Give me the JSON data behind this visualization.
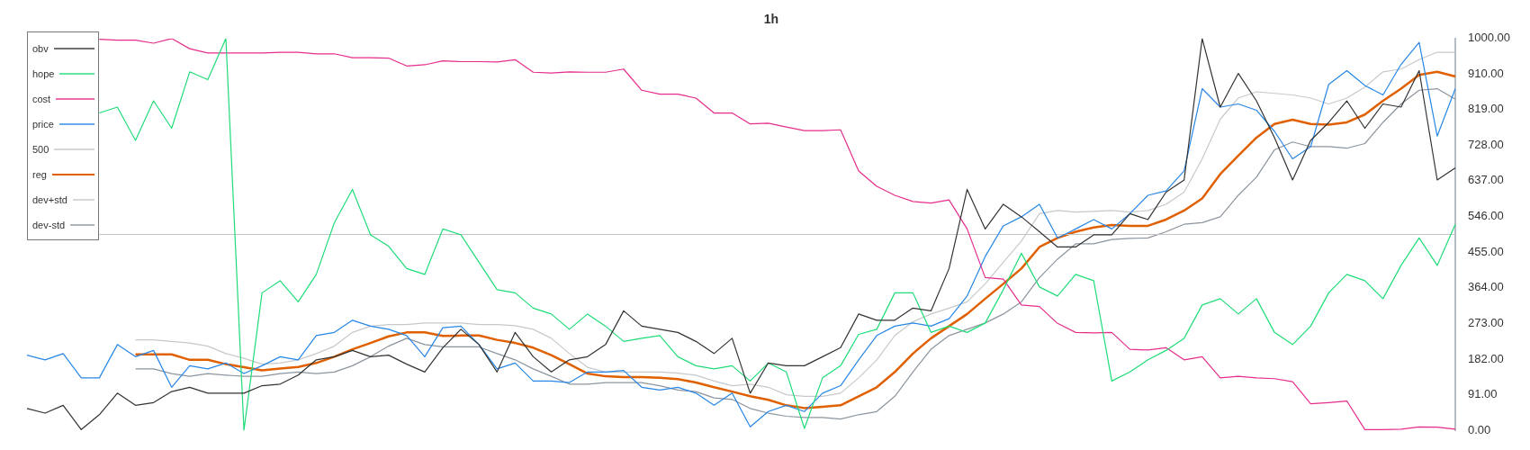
{
  "chart_data": {
    "type": "line",
    "title": "1h",
    "categories": [
      null,
      null,
      null,
      null,
      null,
      null,
      null,
      null,
      null,
      null,
      null,
      null,
      null,
      null,
      null,
      null,
      null,
      null,
      null,
      null,
      null,
      null,
      null,
      null,
      null,
      null,
      null,
      null,
      null,
      null,
      null,
      null,
      null,
      null,
      null,
      null,
      null,
      null,
      null,
      null,
      null,
      null,
      null,
      null,
      null,
      null,
      null,
      null,
      null,
      null,
      null,
      null,
      null,
      null,
      null,
      null,
      null,
      null,
      null,
      null,
      null,
      null,
      null,
      null,
      null,
      null,
      null,
      null,
      null,
      null,
      null,
      null,
      null,
      null,
      null,
      null,
      null,
      null,
      null,
      null
    ],
    "series": [
      {
        "name": "obv",
        "color": "#333333",
        "values": [
          56,
          44,
          64,
          2,
          40,
          95,
          64,
          71,
          99,
          110,
          95,
          95,
          95,
          114,
          118,
          141,
          180,
          188,
          204,
          188,
          192,
          169,
          149,
          211,
          258,
          219,
          149,
          250,
          188,
          149,
          180,
          188,
          219,
          305,
          266,
          258,
          250,
          227,
          196,
          235,
          95,
          172,
          165,
          165,
          188,
          211,
          297,
          281,
          281,
          312,
          305,
          413,
          615,
          514,
          577,
          545,
          507,
          468,
          468,
          499,
          499,
          553,
          538,
          608,
          639,
          1000,
          825,
          911,
          841,
          747,
          639,
          740,
          786,
          841,
          771,
          833,
          825,
          918,
          639,
          670
        ]
      },
      {
        "name": "hope",
        "color": "#1fdc78",
        "values": [
          null,
          null,
          null,
          null,
          810,
          825,
          740,
          841,
          771,
          915,
          895,
          1000,
          0,
          351,
          382,
          328,
          398,
          530,
          615,
          499,
          470,
          413,
          398,
          514,
          499,
          429,
          359,
          351,
          312,
          297,
          258,
          297,
          266,
          227,
          235,
          242,
          188,
          165,
          157,
          165,
          126,
          172,
          149,
          5,
          134,
          165,
          245,
          258,
          351,
          351,
          250,
          266,
          250,
          274,
          359,
          452,
          366,
          343,
          398,
          382,
          126,
          149,
          180,
          204,
          235,
          320,
          336,
          297,
          336,
          250,
          219,
          266,
          351,
          398,
          382,
          336,
          421,
          491,
          421,
          526
        ]
      },
      {
        "name": "cost",
        "color": "#e52d8c",
        "values": [
          null,
          null,
          null,
          null,
          998,
          996,
          996,
          988,
          1000,
          974,
          963,
          963,
          963,
          963,
          965,
          965,
          961,
          961,
          951,
          951,
          950,
          930,
          933,
          943,
          941,
          941,
          940,
          946,
          914,
          912,
          915,
          914,
          914,
          922,
          868,
          858,
          858,
          848,
          810,
          810,
          782,
          784,
          774,
          765,
          765,
          767,
          662,
          623,
          600,
          584,
          580,
          588,
          514,
          390,
          386,
          320,
          316,
          273,
          250,
          249,
          250,
          207,
          205,
          211,
          180,
          188,
          134,
          138,
          134,
          132,
          124,
          68,
          71,
          75,
          2,
          2,
          3,
          9,
          8,
          3
        ]
      },
      {
        "name": "price",
        "color": "#2887e6",
        "values": [
          192,
          180,
          196,
          134,
          134,
          219,
          188,
          204,
          110,
          165,
          157,
          172,
          145,
          165,
          188,
          180,
          242,
          250,
          281,
          266,
          258,
          242,
          188,
          262,
          266,
          219,
          157,
          172,
          126,
          126,
          122,
          149,
          149,
          153,
          110,
          103,
          110,
          95,
          64,
          95,
          9,
          48,
          64,
          48,
          95,
          114,
          180,
          242,
          266,
          274,
          266,
          285,
          343,
          444,
          522,
          545,
          577,
          491,
          514,
          538,
          514,
          553,
          600,
          611,
          662,
          872,
          825,
          833,
          817,
          763,
          693,
          724,
          883,
          918,
          880,
          856,
          934,
          990,
          751,
          872
        ]
      },
      {
        "name": "500",
        "color": "#c4c4c4",
        "values": [
          null,
          null,
          null,
          null,
          500,
          500,
          500,
          500,
          500,
          500,
          500,
          500,
          500,
          500,
          500,
          500,
          500,
          500,
          500,
          500,
          500,
          500,
          500,
          500,
          500,
          500,
          500,
          500,
          500,
          500,
          500,
          500,
          500,
          500,
          500,
          500,
          500,
          500,
          500,
          500,
          500,
          500,
          500,
          500,
          500,
          500,
          500,
          500,
          500,
          500,
          500,
          500,
          500,
          500,
          500,
          500,
          500,
          500,
          500,
          500,
          500,
          500,
          500,
          500,
          500,
          500,
          500,
          500,
          500,
          500,
          500,
          500,
          500,
          500,
          500,
          500,
          500,
          500,
          500,
          500
        ]
      },
      {
        "name": "reg",
        "color": "#e06000",
        "values": [
          null,
          null,
          null,
          null,
          null,
          null,
          194,
          194,
          194,
          180,
          180,
          169,
          161,
          153,
          158,
          162,
          172,
          188,
          207,
          223,
          240,
          250,
          250,
          241,
          242,
          242,
          231,
          223,
          211,
          192,
          169,
          145,
          138,
          136,
          136,
          134,
          131,
          122,
          110,
          99,
          87,
          78,
          64,
          57,
          60,
          64,
          87,
          110,
          149,
          196,
          235,
          266,
          297,
          336,
          374,
          413,
          468,
          491,
          507,
          518,
          524,
          522,
          522,
          538,
          561,
          592,
          654,
          701,
          747,
          782,
          793,
          782,
          780,
          786,
          806,
          841,
          872,
          907,
          915,
          903
        ]
      },
      {
        "name": "dev+std",
        "color": "#c6c9cc",
        "values": [
          null,
          null,
          null,
          null,
          null,
          null,
          231,
          231,
          227,
          223,
          215,
          196,
          184,
          169,
          172,
          180,
          196,
          215,
          250,
          266,
          270,
          270,
          274,
          274,
          274,
          270,
          270,
          267,
          258,
          235,
          196,
          161,
          149,
          149,
          149,
          149,
          146,
          141,
          126,
          114,
          118,
          110,
          91,
          87,
          87,
          95,
          134,
          180,
          242,
          277,
          297,
          312,
          328,
          374,
          429,
          483,
          553,
          561,
          557,
          559,
          561,
          557,
          561,
          577,
          608,
          693,
          794,
          848,
          864,
          860,
          856,
          848,
          833,
          848,
          876,
          915,
          922,
          946,
          965,
          965
        ]
      },
      {
        "name": "dev-std",
        "color": "#8c959e",
        "values": [
          null,
          null,
          null,
          null,
          null,
          null,
          157,
          157,
          145,
          138,
          145,
          141,
          138,
          138,
          145,
          149,
          145,
          149,
          165,
          188,
          215,
          235,
          219,
          213,
          213,
          213,
          196,
          180,
          157,
          138,
          118,
          118,
          122,
          122,
          122,
          114,
          103,
          99,
          83,
          79,
          56,
          44,
          36,
          33,
          33,
          29,
          40,
          48,
          87,
          149,
          207,
          242,
          258,
          274,
          297,
          328,
          390,
          437,
          476,
          476,
          487,
          490,
          491,
          507,
          526,
          530,
          545,
          600,
          646,
          716,
          736,
          724,
          724,
          720,
          732,
          786,
          833,
          868,
          872,
          845
        ]
      }
    ],
    "ylim": [
      0,
      1000
    ],
    "yticks": [
      {
        "value": 0,
        "label": "0.00"
      },
      {
        "value": 91,
        "label": "91.00"
      },
      {
        "value": 182,
        "label": "182.00"
      },
      {
        "value": 273,
        "label": "273.00"
      },
      {
        "value": 364,
        "label": "364.00"
      },
      {
        "value": 455,
        "label": "455.00"
      },
      {
        "value": 546,
        "label": "546.00"
      },
      {
        "value": 637,
        "label": "637.00"
      },
      {
        "value": 728,
        "label": "728.00"
      },
      {
        "value": 819,
        "label": "819.00"
      },
      {
        "value": 910,
        "label": "910.00"
      },
      {
        "value": 1000,
        "label": "1000.00"
      }
    ],
    "tick_labels": "y",
    "grid": false,
    "legend": "top left",
    "marker": "none",
    "line_style": "solid"
  }
}
